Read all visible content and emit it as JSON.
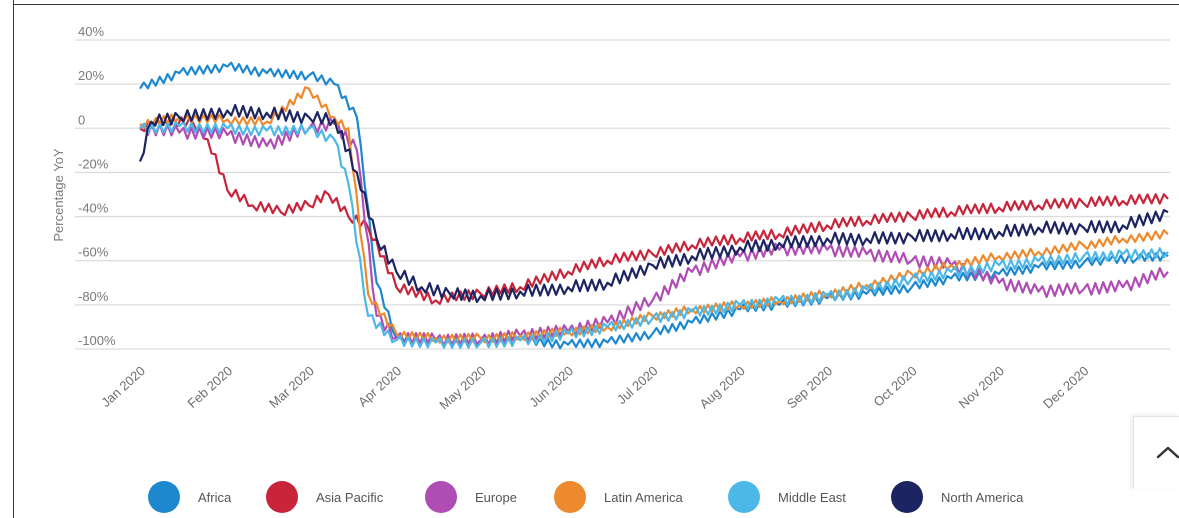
{
  "chart_data": {
    "type": "line",
    "ylabel": "Percentage YoY",
    "y_ticks": [
      {
        "value": 40,
        "label": "40%"
      },
      {
        "value": 20,
        "label": "20%"
      },
      {
        "value": 0,
        "label": "0"
      },
      {
        "value": -20,
        "label": "-20%"
      },
      {
        "value": -40,
        "label": "-40%"
      },
      {
        "value": -60,
        "label": "-60%"
      },
      {
        "value": -80,
        "label": "-80%"
      },
      {
        "value": -100,
        "label": "-100%"
      }
    ],
    "ylim": [
      -100,
      40
    ],
    "x_axis_type": "date",
    "xlim": [
      "2020-01-01",
      "2020-12-31"
    ],
    "x_ticks": [
      {
        "date": "2020-01-01",
        "label": "Jan 2020"
      },
      {
        "date": "2020-02-01",
        "label": "Feb 2020"
      },
      {
        "date": "2020-03-01",
        "label": "Mar 2020"
      },
      {
        "date": "2020-04-01",
        "label": "Apr 2020"
      },
      {
        "date": "2020-05-01",
        "label": "May 2020"
      },
      {
        "date": "2020-06-01",
        "label": "Jun 2020"
      },
      {
        "date": "2020-07-01",
        "label": "Jul 2020"
      },
      {
        "date": "2020-08-01",
        "label": "Aug 2020"
      },
      {
        "date": "2020-09-01",
        "label": "Sep 2020"
      },
      {
        "date": "2020-10-01",
        "label": "Oct 2020"
      },
      {
        "date": "2020-11-01",
        "label": "Nov 2020"
      },
      {
        "date": "2020-12-01",
        "label": "Dec 2020"
      }
    ],
    "grid": "horizontal",
    "legend_position": "bottom",
    "series": [
      {
        "name": "Africa",
        "color": "#1e88cf",
        "x": [
          "2020-01-01",
          "2020-01-15",
          "2020-02-01",
          "2020-02-15",
          "2020-03-01",
          "2020-03-10",
          "2020-03-18",
          "2020-03-25",
          "2020-04-01",
          "2020-04-15",
          "2020-05-01",
          "2020-05-15",
          "2020-06-01",
          "2020-06-15",
          "2020-07-01",
          "2020-07-15",
          "2020-08-01",
          "2020-08-15",
          "2020-09-01",
          "2020-09-15",
          "2020-10-01",
          "2020-10-15",
          "2020-11-01",
          "2020-11-15",
          "2020-12-01",
          "2020-12-10",
          "2020-12-20",
          "2020-12-31"
        ],
        "y": [
          18,
          25,
          28,
          25,
          24,
          20,
          5,
          -70,
          -95,
          -97,
          -97,
          -96,
          -98,
          -97,
          -93,
          -88,
          -82,
          -80,
          -77,
          -75,
          -72,
          -68,
          -66,
          -63,
          -61,
          -60,
          -59,
          -58
        ]
      },
      {
        "name": "Asia Pacific",
        "color": "#c8243a",
        "x": [
          "2020-01-01",
          "2020-01-10",
          "2020-01-20",
          "2020-01-25",
          "2020-02-01",
          "2020-02-10",
          "2020-02-20",
          "2020-03-01",
          "2020-03-08",
          "2020-03-15",
          "2020-03-22",
          "2020-04-01",
          "2020-04-15",
          "2020-05-01",
          "2020-05-15",
          "2020-06-01",
          "2020-06-15",
          "2020-07-01",
          "2020-07-15",
          "2020-08-01",
          "2020-08-15",
          "2020-09-01",
          "2020-09-15",
          "2020-10-01",
          "2020-10-15",
          "2020-11-01",
          "2020-11-15",
          "2020-12-01",
          "2020-12-15",
          "2020-12-31"
        ],
        "y": [
          0,
          3,
          2,
          -5,
          -28,
          -35,
          -38,
          -35,
          -30,
          -40,
          -45,
          -72,
          -78,
          -75,
          -72,
          -65,
          -60,
          -57,
          -53,
          -50,
          -48,
          -44,
          -42,
          -40,
          -38,
          -36,
          -35,
          -34,
          -33,
          -32
        ]
      },
      {
        "name": "Europe",
        "color": "#b04db5",
        "x": [
          "2020-01-01",
          "2020-01-15",
          "2020-02-01",
          "2020-02-15",
          "2020-03-01",
          "2020-03-10",
          "2020-03-18",
          "2020-03-25",
          "2020-04-01",
          "2020-04-15",
          "2020-05-01",
          "2020-05-15",
          "2020-06-01",
          "2020-06-15",
          "2020-07-01",
          "2020-07-15",
          "2020-08-01",
          "2020-08-15",
          "2020-09-01",
          "2020-09-15",
          "2020-10-01",
          "2020-10-15",
          "2020-11-01",
          "2020-11-15",
          "2020-12-01",
          "2020-12-15",
          "2020-12-31"
        ],
        "y": [
          0,
          -2,
          -3,
          -8,
          0,
          2,
          -10,
          -85,
          -95,
          -96,
          -96,
          -94,
          -92,
          -88,
          -78,
          -65,
          -58,
          -55,
          -55,
          -57,
          -60,
          -62,
          -70,
          -74,
          -73,
          -72,
          -65
        ]
      },
      {
        "name": "Latin America",
        "color": "#ee8a2e",
        "x": [
          "2020-01-01",
          "2020-01-15",
          "2020-02-01",
          "2020-02-15",
          "2020-03-01",
          "2020-03-10",
          "2020-03-15",
          "2020-03-22",
          "2020-04-01",
          "2020-04-15",
          "2020-05-01",
          "2020-05-15",
          "2020-06-01",
          "2020-06-15",
          "2020-07-01",
          "2020-07-15",
          "2020-08-01",
          "2020-08-15",
          "2020-09-01",
          "2020-09-15",
          "2020-10-01",
          "2020-10-15",
          "2020-11-01",
          "2020-11-15",
          "2020-12-01",
          "2020-12-15",
          "2020-12-31"
        ],
        "y": [
          2,
          5,
          4,
          3,
          18,
          5,
          0,
          -75,
          -93,
          -95,
          -95,
          -94,
          -92,
          -90,
          -85,
          -82,
          -80,
          -78,
          -75,
          -71,
          -66,
          -62,
          -58,
          -56,
          -53,
          -50,
          -48
        ]
      },
      {
        "name": "Middle East",
        "color": "#4cb8e8",
        "x": [
          "2020-01-01",
          "2020-01-15",
          "2020-02-01",
          "2020-02-15",
          "2020-03-01",
          "2020-03-10",
          "2020-03-15",
          "2020-03-22",
          "2020-04-01",
          "2020-04-15",
          "2020-05-01",
          "2020-05-15",
          "2020-06-01",
          "2020-06-15",
          "2020-07-01",
          "2020-07-15",
          "2020-08-01",
          "2020-08-15",
          "2020-09-01",
          "2020-09-15",
          "2020-10-01",
          "2020-10-15",
          "2020-11-01",
          "2020-11-15",
          "2020-12-01",
          "2020-12-15",
          "2020-12-31"
        ],
        "y": [
          0,
          1,
          0,
          -1,
          0,
          -5,
          -25,
          -85,
          -96,
          -97,
          -97,
          -96,
          -93,
          -90,
          -86,
          -83,
          -80,
          -78,
          -76,
          -73,
          -68,
          -65,
          -62,
          -60,
          -58,
          -57,
          -56
        ]
      },
      {
        "name": "North America",
        "color": "#1c2461",
        "x": [
          "2020-01-01",
          "2020-01-05",
          "2020-01-15",
          "2020-02-01",
          "2020-02-15",
          "2020-03-01",
          "2020-03-10",
          "2020-03-18",
          "2020-03-25",
          "2020-04-01",
          "2020-04-10",
          "2020-04-20",
          "2020-05-01",
          "2020-05-15",
          "2020-06-01",
          "2020-06-15",
          "2020-07-01",
          "2020-07-15",
          "2020-08-01",
          "2020-08-15",
          "2020-09-01",
          "2020-09-15",
          "2020-10-01",
          "2020-10-15",
          "2020-11-01",
          "2020-11-15",
          "2020-12-01",
          "2020-12-15",
          "2020-12-31"
        ],
        "y": [
          -15,
          3,
          5,
          8,
          7,
          5,
          4,
          -20,
          -50,
          -65,
          -72,
          -75,
          -76,
          -74,
          -72,
          -70,
          -62,
          -58,
          -54,
          -52,
          -50,
          -50,
          -49,
          -48,
          -47,
          -45,
          -45,
          -44,
          -38
        ]
      }
    ]
  }
}
